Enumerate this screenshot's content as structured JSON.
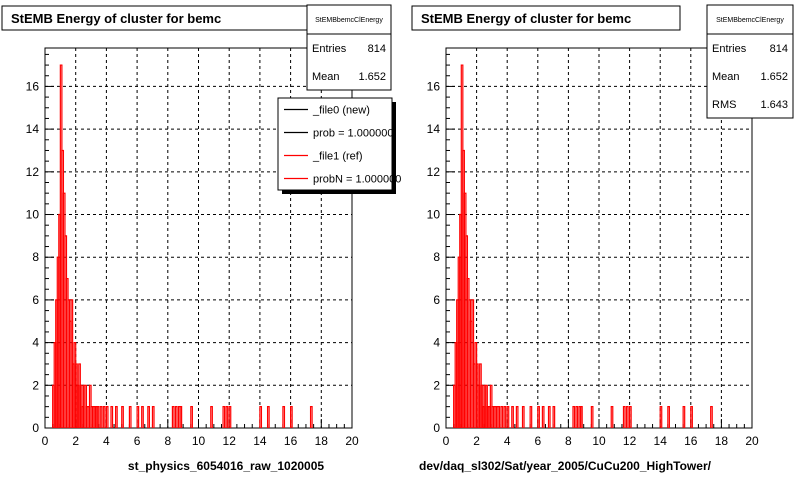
{
  "chart_data": [
    {
      "type": "histogram",
      "title": "StEMB Energy of cluster for bemc",
      "xlabel": "st_physics_6054016_raw_1020005",
      "ylabel": "",
      "xlim": [
        0,
        20
      ],
      "ylim": [
        0,
        17.8
      ],
      "xticks": [
        "0",
        "2",
        "4",
        "6",
        "8",
        "10",
        "12",
        "14",
        "16",
        "18",
        "20"
      ],
      "yticks": [
        "0",
        "2",
        "4",
        "6",
        "8",
        "10",
        "12",
        "14",
        "16"
      ],
      "grid": true,
      "stats": {
        "name": "StEMBbemcClEnergy",
        "rows": [
          {
            "label": "Entries",
            "value": "814"
          },
          {
            "label": "Mean",
            "value": "1.652"
          }
        ]
      },
      "legend": {
        "placement": "top-right",
        "entries": [
          {
            "label": "_file0 (new)",
            "color": "#000000"
          },
          {
            "label": "prob = 1.000000",
            "color": "#000000"
          },
          {
            "label": "_file1 (ref)",
            "color": "#ff0000"
          },
          {
            "label": "probN = 1.000000",
            "color": "#ff0000"
          }
        ]
      },
      "series": [
        {
          "name": "_file1 (ref)",
          "color": "#ff0000",
          "bin_width": 0.1,
          "x": [
            0.5,
            0.6,
            0.7,
            0.8,
            0.9,
            1.0,
            1.1,
            1.2,
            1.3,
            1.4,
            1.5,
            1.6,
            1.7,
            1.8,
            1.9,
            2.0,
            2.1,
            2.2,
            2.3,
            2.4,
            2.5,
            2.6,
            2.7,
            2.8,
            2.9,
            3.0,
            3.1,
            3.2,
            3.3,
            3.4,
            3.6,
            3.8,
            4.0,
            4.3,
            4.6,
            5.0,
            5.5,
            6.0,
            6.3,
            6.7,
            7.0,
            8.3,
            8.5,
            8.7,
            8.8,
            9.5,
            10.8,
            11.6,
            11.8,
            12.0,
            14.0,
            14.5,
            15.5,
            16.0,
            17.3
          ],
          "values": [
            2,
            4,
            6,
            8,
            10,
            17,
            13,
            11,
            9,
            7,
            6,
            5,
            6,
            3,
            4,
            3,
            2,
            3,
            2,
            1,
            2,
            2,
            1,
            1,
            2,
            1,
            1,
            1,
            1,
            1,
            1,
            1,
            1,
            1,
            1,
            1,
            1,
            1,
            1,
            1,
            1,
            1,
            1,
            1,
            1,
            1,
            1,
            1,
            1,
            1,
            1,
            1,
            1,
            1,
            1
          ]
        }
      ]
    },
    {
      "type": "histogram",
      "title": "StEMB Energy of cluster for bemc",
      "xlabel": "dev/daq_sl302/Sat/year_2005/CuCu200_HighTower/",
      "ylabel": "",
      "xlim": [
        0,
        20
      ],
      "ylim": [
        0,
        17.8
      ],
      "xticks": [
        "0",
        "2",
        "4",
        "6",
        "8",
        "10",
        "12",
        "14",
        "16",
        "18",
        "20"
      ],
      "yticks": [
        "0",
        "2",
        "4",
        "6",
        "8",
        "10",
        "12",
        "14",
        "16"
      ],
      "grid": true,
      "stats": {
        "name": "StEMBbemcClEnergy",
        "rows": [
          {
            "label": "Entries",
            "value": "814"
          },
          {
            "label": "Mean",
            "value": "1.652"
          },
          {
            "label": "RMS",
            "value": "1.643"
          }
        ]
      },
      "series": [
        {
          "name": "",
          "color": "#ff0000",
          "bin_width": 0.1,
          "x": [
            0.5,
            0.6,
            0.7,
            0.8,
            0.9,
            1.0,
            1.1,
            1.2,
            1.3,
            1.4,
            1.5,
            1.6,
            1.7,
            1.8,
            1.9,
            2.0,
            2.1,
            2.2,
            2.3,
            2.4,
            2.5,
            2.6,
            2.7,
            2.8,
            2.9,
            3.0,
            3.1,
            3.2,
            3.3,
            3.4,
            3.6,
            3.8,
            4.0,
            4.3,
            4.6,
            5.0,
            5.5,
            6.0,
            6.3,
            6.7,
            7.0,
            8.3,
            8.5,
            8.7,
            8.8,
            9.5,
            10.8,
            11.6,
            11.8,
            12.0,
            14.0,
            14.5,
            15.5,
            16.0,
            17.3
          ],
          "values": [
            2,
            4,
            6,
            8,
            10,
            17,
            13,
            11,
            9,
            7,
            6,
            5,
            6,
            3,
            4,
            3,
            2,
            3,
            2,
            1,
            2,
            2,
            1,
            1,
            2,
            1,
            1,
            1,
            1,
            1,
            1,
            1,
            1,
            1,
            1,
            1,
            1,
            1,
            1,
            1,
            1,
            1,
            1,
            1,
            1,
            1,
            1,
            1,
            1,
            1,
            1,
            1,
            1,
            1,
            1
          ]
        }
      ]
    }
  ]
}
